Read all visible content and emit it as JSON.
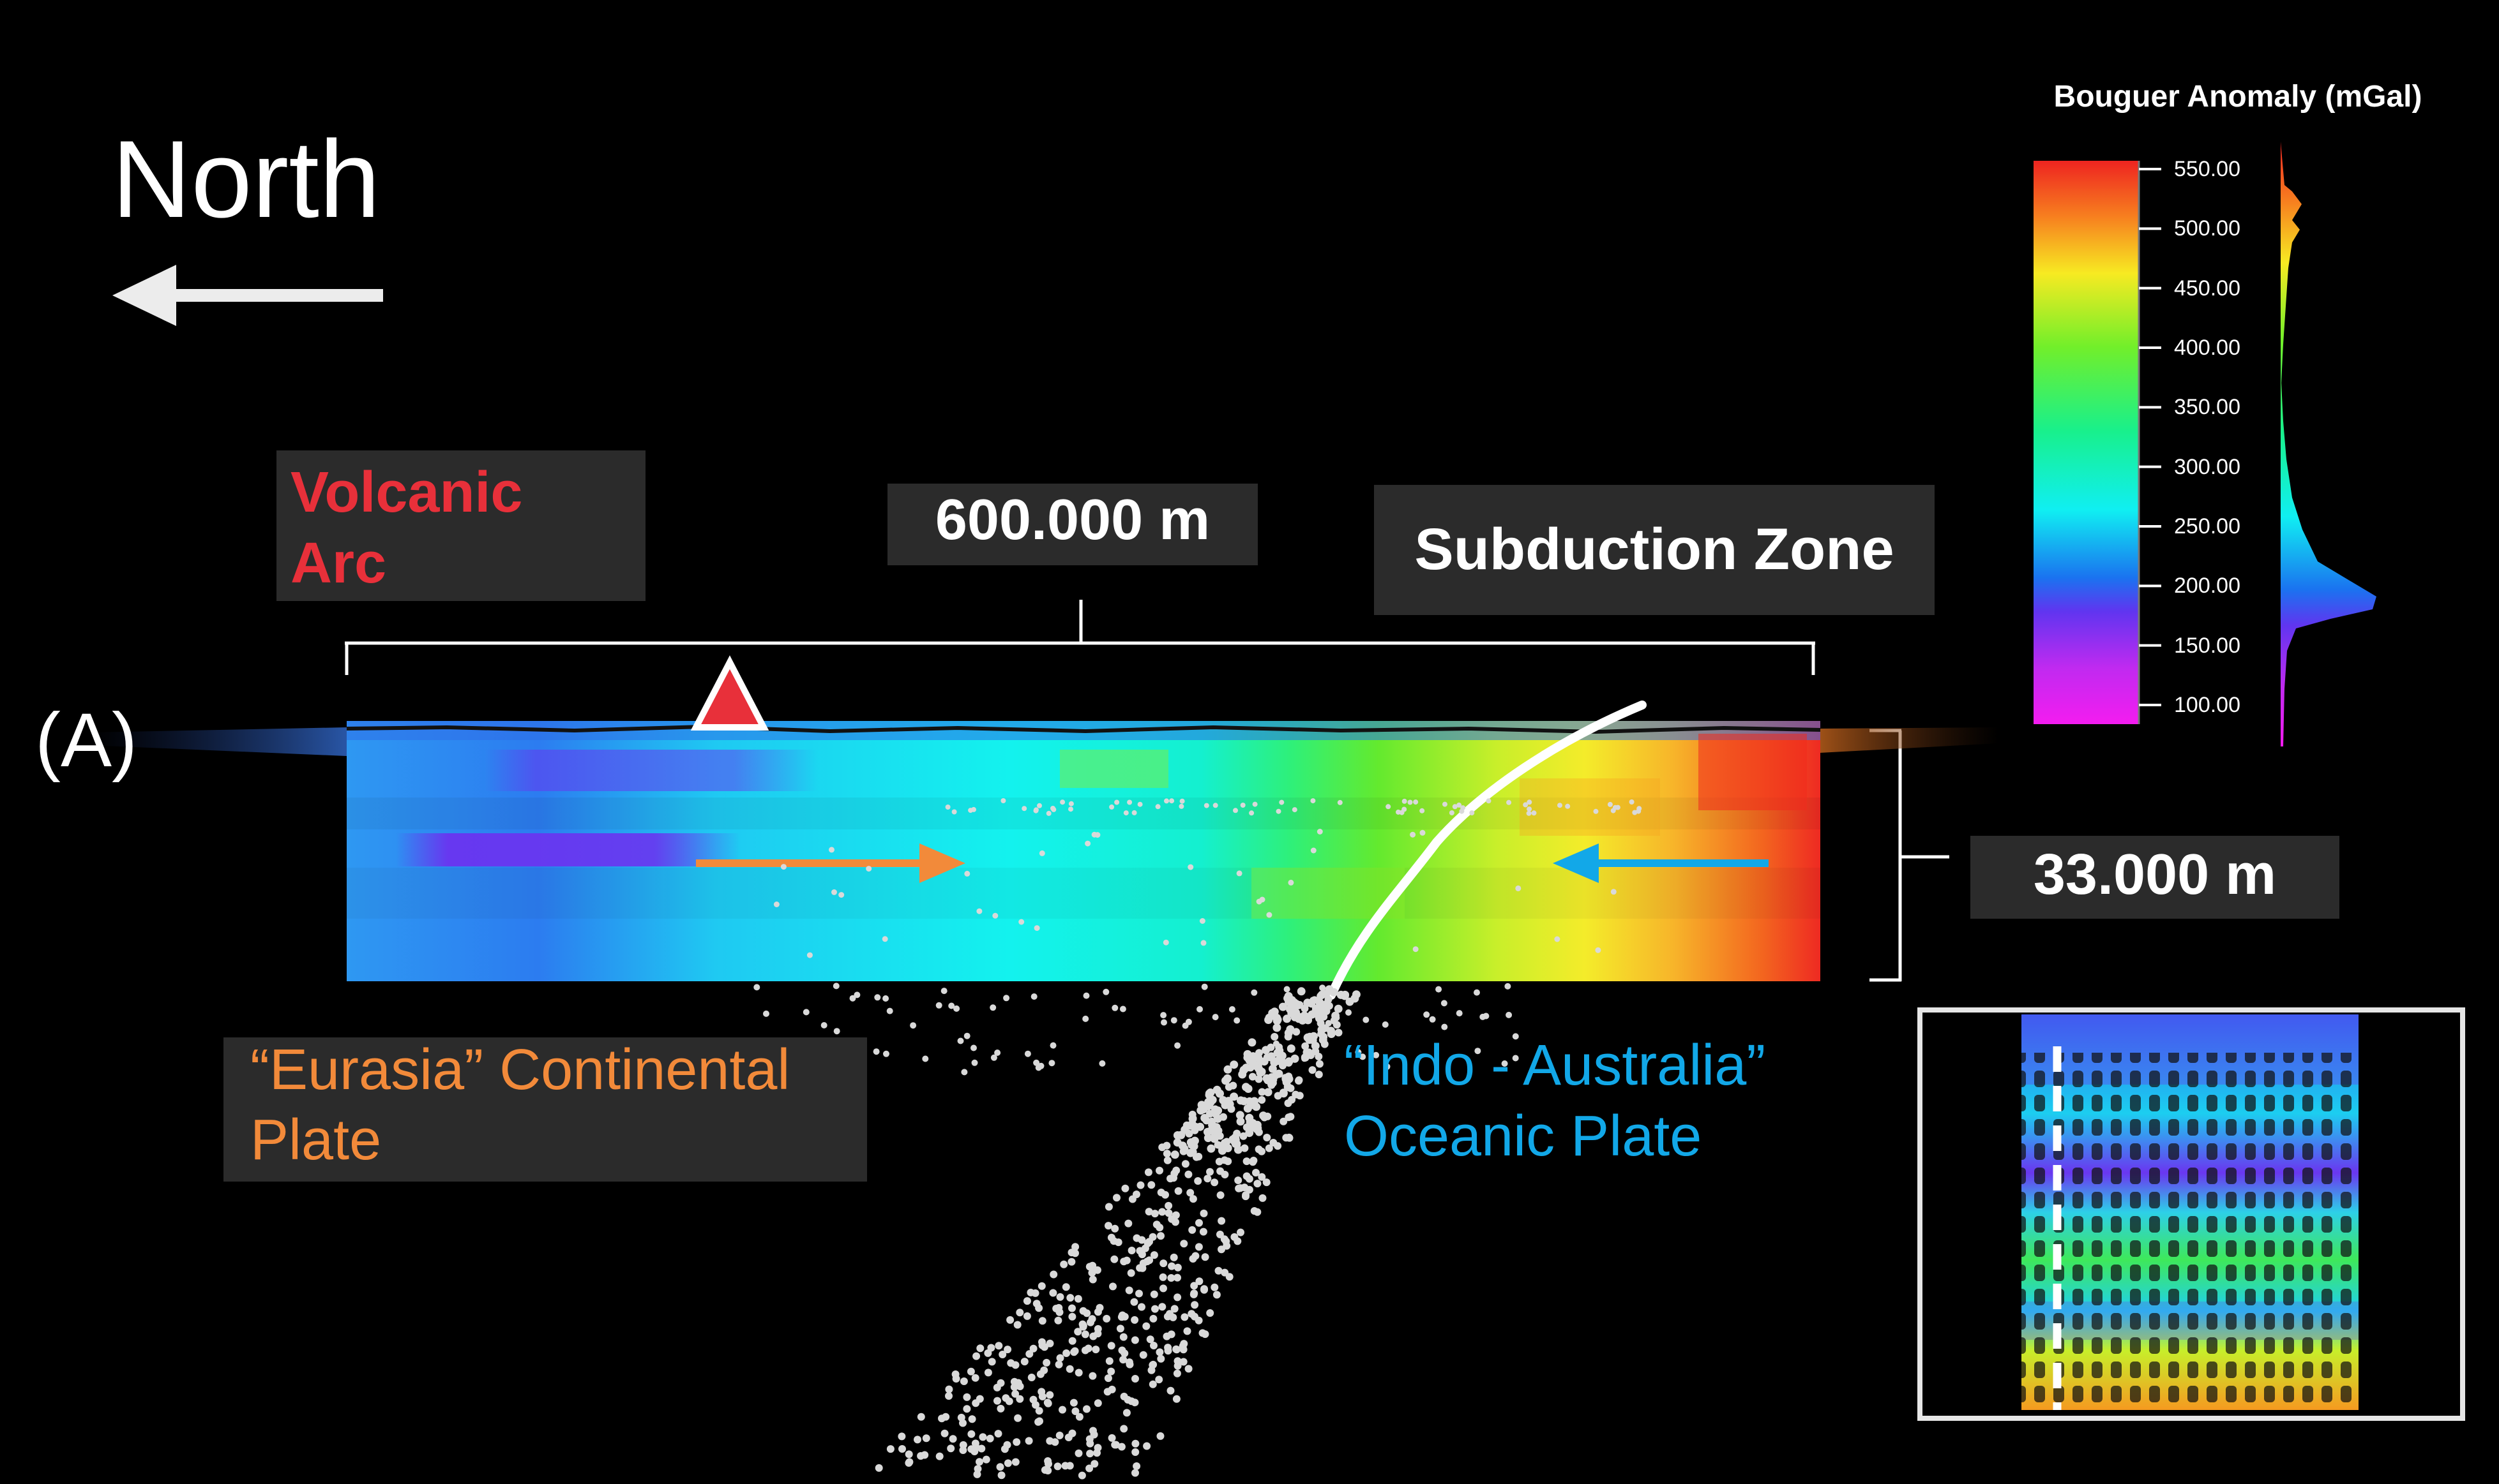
{
  "north_label": "North",
  "site_label": "(A)",
  "volcanic_arc": {
    "line1": "Volcanic",
    "line2": "Arc"
  },
  "profile_width": "600.000 m",
  "profile_depth": "33.000 m",
  "subduction_zone": "Subduction Zone",
  "eurasia_plate": {
    "line1": "“Eurasia” Continental",
    "line2": "Plate"
  },
  "indo_plate": {
    "line1": "“Indo - Australia”",
    "line2": "Oceanic Plate"
  },
  "legend": {
    "title": "Bouguer Anomaly (mGal)",
    "ticks": [
      "550.00",
      "500.00",
      "450.00",
      "400.00",
      "350.00",
      "300.00",
      "250.00",
      "200.00",
      "150.00",
      "100.00"
    ],
    "range": [
      100,
      550
    ]
  },
  "colors": {
    "volcanic_text": "#e8303a",
    "eurasia_text": "#f28a3a",
    "indo_text": "#12a8e8",
    "eurasia_arrow": "#f28a3a",
    "indo_arrow": "#12a8e8",
    "volcano_marker": "#e8303a",
    "label_box": "#2b2b2b"
  },
  "icons": {
    "north_arrow": "arrow-left-icon",
    "volcano": "triangle-icon"
  }
}
